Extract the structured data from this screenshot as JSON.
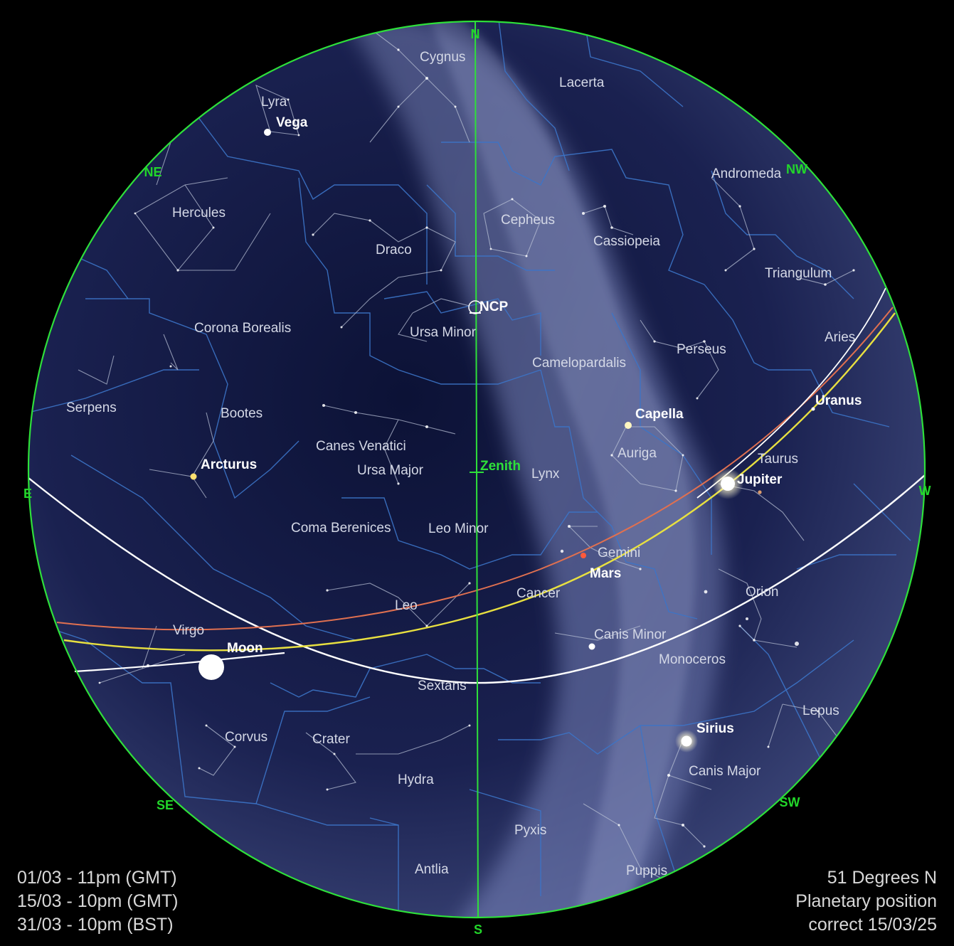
{
  "compass": {
    "n": "N",
    "ne": "NE",
    "e": "E",
    "se": "SE",
    "s": "S",
    "sw": "SW",
    "w": "W",
    "nw": "NW",
    "ncp": "NCP",
    "zenith": "Zenith"
  },
  "constellations": {
    "cygnus": "Cygnus",
    "lacerta": "Lacerta",
    "lyra": "Lyra",
    "andromeda": "Andromeda",
    "hercules": "Hercules",
    "cepheus": "Cepheus",
    "cassiopeia": "Cassiopeia",
    "draco": "Draco",
    "triangulum": "Triangulum",
    "ursa_minor": "Ursa Minor",
    "corona_borealis": "Corona Borealis",
    "aries": "Aries",
    "perseus": "Perseus",
    "camelopardalis": "Camelopardalis",
    "serpens": "Serpens",
    "bootes": "Bootes",
    "auriga": "Auriga",
    "canes_venatici": "Canes Venatici",
    "taurus": "Taurus",
    "ursa_major": "Ursa Major",
    "lynx": "Lynx",
    "coma_berenices": "Coma Berenices",
    "leo_minor": "Leo Minor",
    "gemini": "Gemini",
    "orion": "Orion",
    "cancer": "Cancer",
    "leo": "Leo",
    "virgo": "Virgo",
    "canis_minor": "Canis Minor",
    "monoceros": "Monoceros",
    "sextans": "Sextans",
    "lepus": "Lepus",
    "corvus": "Corvus",
    "crater": "Crater",
    "canis_major": "Canis Major",
    "hydra": "Hydra",
    "pyxis": "Pyxis",
    "antlia": "Antlia",
    "puppis": "Puppis"
  },
  "objects": {
    "vega": "Vega",
    "arcturus": "Arcturus",
    "capella": "Capella",
    "uranus": "Uranus",
    "jupiter": "Jupiter",
    "mars": "Mars",
    "moon": "Moon",
    "sirius": "Sirius"
  },
  "notes_left": [
    "01/03 - 11pm (GMT)",
    "15/03 - 10pm (GMT)",
    "31/03 - 10pm (BST)"
  ],
  "notes_right": [
    "51 Degrees N",
    "Planetary position",
    "correct 15/03/25"
  ],
  "colors": {
    "background": "#000000",
    "sky": "#14193f",
    "horizon": "#2ee03a",
    "boundaries": "#3c74c8",
    "stick_figures": "#b4bcd2",
    "ecliptic": "#e8e040",
    "moon_path": "#e07050",
    "equator": "#ffffff"
  }
}
